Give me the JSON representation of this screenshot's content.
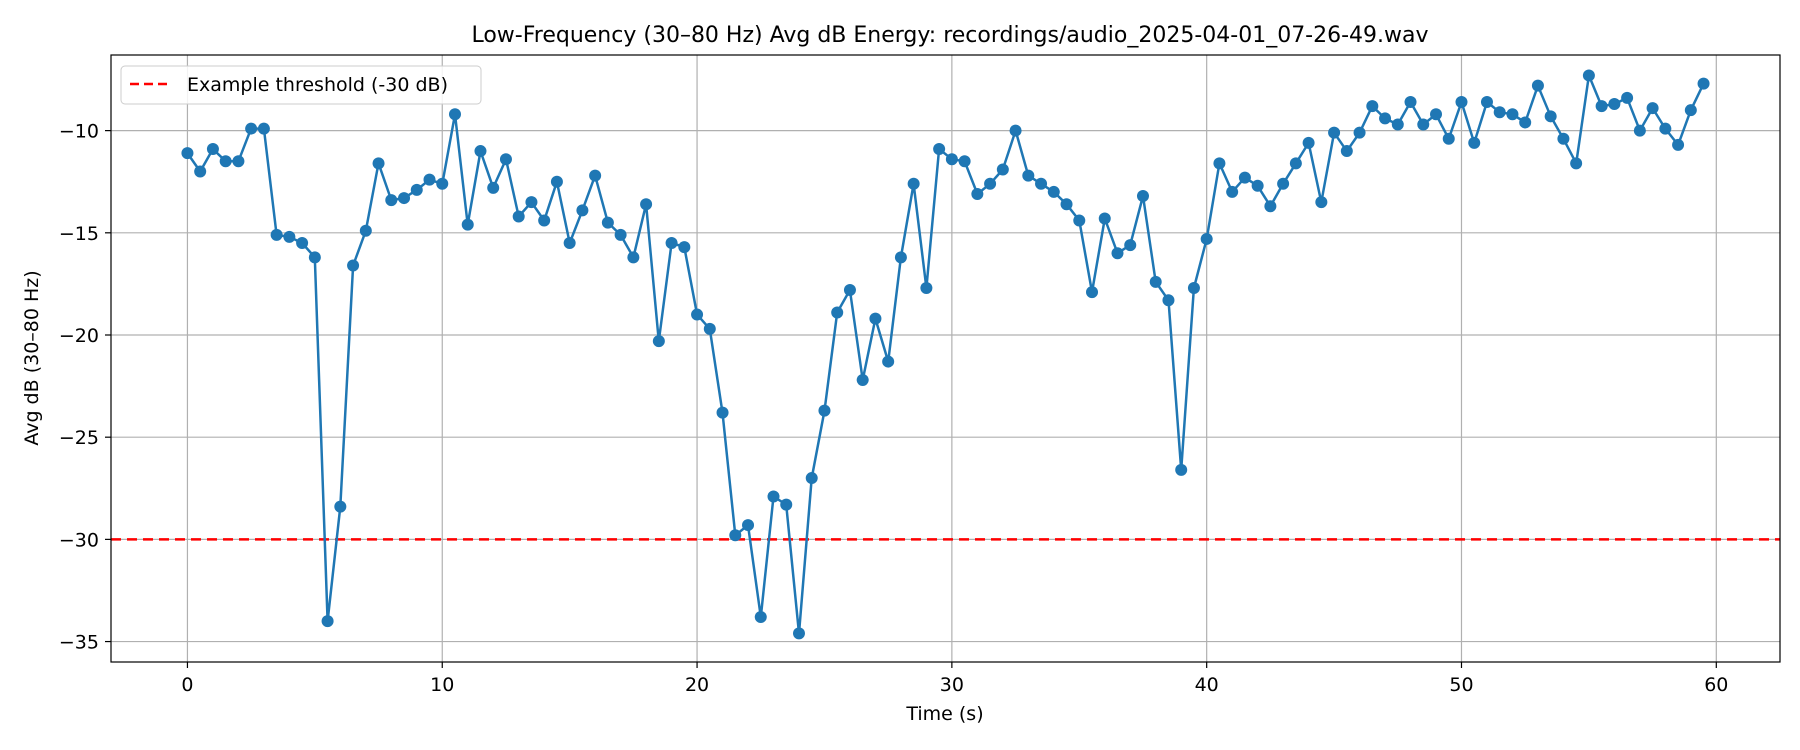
{
  "chart_data": {
    "type": "line",
    "title": "Low-Frequency (30–80 Hz) Avg dB Energy: recordings/audio_2025-04-01_07-26-49.wav",
    "xlabel": "Time (s)",
    "ylabel": "Avg dB (30–80 Hz)",
    "xlim": [
      -3,
      62.5
    ],
    "ylim": [
      -36,
      -6.3
    ],
    "xticks": [
      0,
      10,
      20,
      30,
      40,
      50,
      60
    ],
    "xtick_labels": [
      "0",
      "10",
      "20",
      "30",
      "40",
      "50",
      "60"
    ],
    "yticks": [
      -35,
      -30,
      -25,
      -20,
      -15,
      -10
    ],
    "ytick_labels": [
      "−35",
      "−30",
      "−25",
      "−20",
      "−15",
      "−10"
    ],
    "grid": true,
    "legend_position": "top-left",
    "series": [
      {
        "color": "#1f77b4",
        "marker": "circle",
        "x": [
          0,
          0.5,
          1,
          1.5,
          2,
          2.5,
          3,
          3.5,
          4,
          4.5,
          5,
          5.5,
          6,
          6.5,
          7,
          7.5,
          8,
          8.5,
          9,
          9.5,
          10,
          10.5,
          11,
          11.5,
          12,
          12.5,
          13,
          13.5,
          14,
          14.5,
          15,
          15.5,
          16,
          16.5,
          17,
          17.5,
          18,
          18.5,
          19,
          19.5,
          20,
          20.5,
          21,
          21.5,
          22,
          22.5,
          23,
          23.5,
          24,
          24.5,
          25,
          25.5,
          26,
          26.5,
          27,
          27.5,
          28,
          28.5,
          29,
          29.5,
          30,
          30.5,
          31,
          31.5,
          32,
          32.5,
          33,
          33.5,
          34,
          34.5,
          35,
          35.5,
          36,
          36.5,
          37,
          37.5,
          38,
          38.5,
          39,
          39.5,
          40,
          40.5,
          41,
          41.5,
          42,
          42.5,
          43,
          43.5,
          44,
          44.5,
          45,
          45.5,
          46,
          46.5,
          47,
          47.5,
          48,
          48.5,
          49,
          49.5,
          50,
          50.5,
          51,
          51.5,
          52,
          52.5,
          53,
          53.5,
          54,
          54.5,
          55,
          55.5,
          56,
          56.5,
          57,
          57.5,
          58,
          58.5,
          59,
          59.5
        ],
        "values": [
          -11.1,
          -12.0,
          -10.9,
          -11.5,
          -11.5,
          -9.9,
          -9.9,
          -15.1,
          -15.2,
          -15.5,
          -16.2,
          -34.0,
          -28.4,
          -16.6,
          -14.9,
          -11.6,
          -13.4,
          -13.3,
          -12.9,
          -12.4,
          -12.6,
          -9.2,
          -14.6,
          -11.0,
          -12.8,
          -11.4,
          -14.2,
          -13.5,
          -14.4,
          -12.5,
          -15.5,
          -13.9,
          -12.2,
          -14.5,
          -15.1,
          -16.2,
          -13.6,
          -20.3,
          -15.5,
          -15.7,
          -19.0,
          -19.7,
          -23.8,
          -29.8,
          -29.3,
          -33.8,
          -27.9,
          -28.3,
          -34.6,
          -27.0,
          -23.7,
          -18.9,
          -17.8,
          -22.2,
          -19.2,
          -21.3,
          -16.2,
          -12.6,
          -17.7,
          -10.9,
          -11.4,
          -11.5,
          -13.1,
          -12.6,
          -11.9,
          -10.0,
          -12.2,
          -12.6,
          -13.0,
          -13.6,
          -14.4,
          -17.9,
          -14.3,
          -16.0,
          -15.6,
          -13.2,
          -17.4,
          -18.3,
          -26.6,
          -17.7,
          -15.3,
          -11.6,
          -13.0,
          -12.3,
          -12.7,
          -13.7,
          -12.6,
          -11.6,
          -10.6,
          -13.5,
          -10.1,
          -11.0,
          -10.1,
          -8.8,
          -9.4,
          -9.7,
          -8.6,
          -9.7,
          -9.2,
          -10.4,
          -8.6,
          -10.6,
          -8.6,
          -9.1,
          -9.2,
          -9.6,
          -7.8,
          -9.3,
          -10.4,
          -11.6,
          -7.3,
          -8.8,
          -8.7,
          -8.4,
          -10.0,
          -8.9,
          -9.9,
          -10.7,
          -9.0,
          -7.7
        ]
      },
      {
        "name": "Example threshold (-30 dB)",
        "color": "#ff0000",
        "style": "dashed",
        "y": -30
      }
    ]
  }
}
